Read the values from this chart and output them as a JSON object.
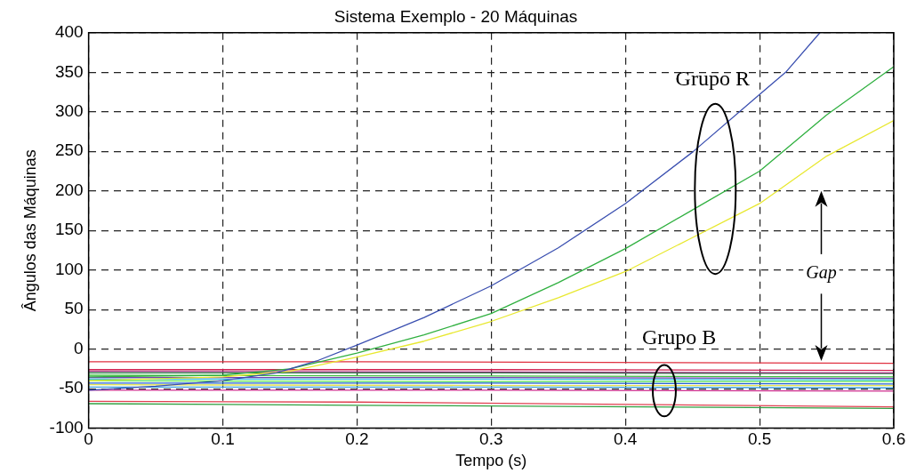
{
  "chart_data": {
    "type": "line",
    "title": "Sistema Exemplo - 20 Máquinas",
    "xlabel": "Tempo (s)",
    "ylabel": "Ângulos das Máquinas",
    "xlim": [
      0,
      0.6
    ],
    "xticks": [
      0,
      0.1,
      0.2,
      0.3,
      0.4,
      0.5,
      0.6
    ],
    "ylim": [
      -100,
      400
    ],
    "yticks": [
      -100,
      -50,
      0,
      50,
      100,
      150,
      200,
      250,
      300,
      350,
      400
    ],
    "grid": true,
    "legend": false,
    "marker": "none",
    "annotations": [
      "Grupo R",
      "Grupo B",
      "Gap"
    ],
    "series": [
      {
        "color": "#3a4fb0",
        "x": [
          0,
          0.05,
          0.1,
          0.14,
          0.17,
          0.2,
          0.25,
          0.3,
          0.35,
          0.4,
          0.45,
          0.5,
          0.52,
          0.545
        ],
        "values": [
          -52,
          -47,
          -40,
          -30,
          -15,
          5,
          40,
          80,
          128,
          184,
          249,
          322,
          351,
          400
        ]
      },
      {
        "color": "#30b040",
        "x": [
          0,
          0.1,
          0.15,
          0.2,
          0.25,
          0.3,
          0.35,
          0.4,
          0.45,
          0.5,
          0.55,
          0.6
        ],
        "values": [
          -35,
          -33,
          -25,
          -5,
          18,
          45,
          84,
          127,
          176,
          225,
          296,
          357
        ]
      },
      {
        "color": "#e8e830",
        "x": [
          0,
          0.1,
          0.15,
          0.2,
          0.25,
          0.3,
          0.35,
          0.4,
          0.45,
          0.5,
          0.55,
          0.6
        ],
        "values": [
          -40,
          -35,
          -28,
          -10,
          10,
          35,
          65,
          98,
          141,
          184,
          244,
          289
        ]
      },
      {
        "color": "#e03040",
        "x": [
          0,
          0.2,
          0.6
        ],
        "values": [
          -16,
          -16,
          -18
        ]
      },
      {
        "color": "#d02050",
        "x": [
          0,
          0.3,
          0.6
        ],
        "values": [
          -26,
          -26,
          -27
        ]
      },
      {
        "color": "#a03080",
        "x": [
          0,
          0.3,
          0.6
        ],
        "values": [
          -28,
          -29,
          -30
        ]
      },
      {
        "color": "#208040",
        "x": [
          0,
          0.3,
          0.6
        ],
        "values": [
          -30,
          -30,
          -31
        ]
      },
      {
        "color": "#40c040",
        "x": [
          0,
          0.3,
          0.6
        ],
        "values": [
          -33,
          -34,
          -35
        ]
      },
      {
        "color": "#7040b0",
        "x": [
          0,
          0.3,
          0.6
        ],
        "values": [
          -36,
          -36,
          -37
        ]
      },
      {
        "color": "#30c0e0",
        "x": [
          0,
          0.3,
          0.6
        ],
        "values": [
          -38,
          -38,
          -39
        ]
      },
      {
        "color": "#50e050",
        "x": [
          0,
          0.3,
          0.6
        ],
        "values": [
          -40,
          -41,
          -41
        ]
      },
      {
        "color": "#2060d0",
        "x": [
          0,
          0.3,
          0.6
        ],
        "values": [
          -43,
          -43,
          -44
        ]
      },
      {
        "color": "#e0e050",
        "x": [
          0,
          0.3,
          0.6
        ],
        "values": [
          -45,
          -46,
          -46
        ]
      },
      {
        "color": "#40a0e0",
        "x": [
          0,
          0.3,
          0.6
        ],
        "values": [
          -48,
          -48,
          -49
        ]
      },
      {
        "color": "#d03090",
        "x": [
          0,
          0.3,
          0.6
        ],
        "values": [
          -52,
          -52,
          -53
        ]
      },
      {
        "color": "#e04050",
        "x": [
          0,
          0.2,
          0.6
        ],
        "values": [
          -66,
          -67,
          -73
        ]
      },
      {
        "color": "#30a040",
        "x": [
          0,
          0.2,
          0.6
        ],
        "values": [
          -69,
          -71,
          -75
        ]
      }
    ]
  }
}
